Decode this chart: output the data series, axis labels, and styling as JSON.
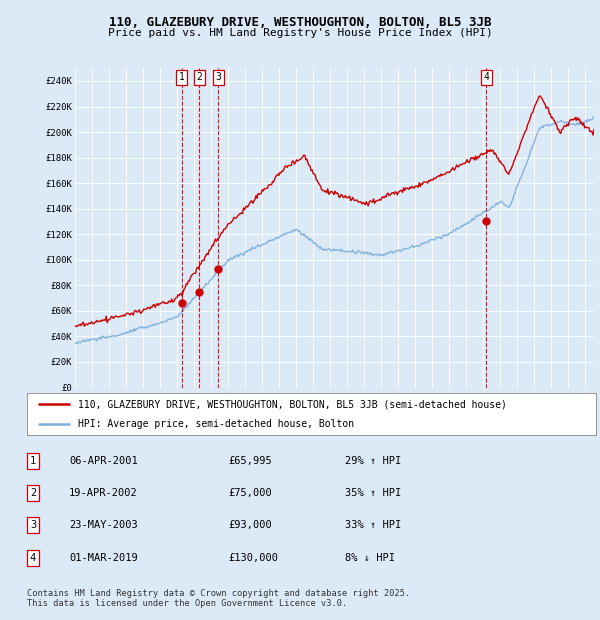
{
  "title": "110, GLAZEBURY DRIVE, WESTHOUGHTON, BOLTON, BL5 3JB",
  "subtitle": "Price paid vs. HM Land Registry's House Price Index (HPI)",
  "ylim": [
    0,
    250000
  ],
  "xlim_start": 1995.0,
  "xlim_end": 2025.5,
  "background_color": "#dce9f7",
  "plot_bg_color": "#dce9f7",
  "grid_color": "#ffffff",
  "sale_points": [
    {
      "label": "1",
      "date_x": 2001.27,
      "price": 65995
    },
    {
      "label": "2",
      "date_x": 2002.3,
      "price": 75000
    },
    {
      "label": "3",
      "date_x": 2003.42,
      "price": 93000
    },
    {
      "label": "4",
      "date_x": 2019.17,
      "price": 130000
    }
  ],
  "legend_property": "110, GLAZEBURY DRIVE, WESTHOUGHTON, BOLTON, BL5 3JB (semi-detached house)",
  "legend_hpi": "HPI: Average price, semi-detached house, Bolton",
  "table_rows": [
    [
      "1",
      "06-APR-2001",
      "£65,995",
      "29% ↑ HPI"
    ],
    [
      "2",
      "19-APR-2002",
      "£75,000",
      "35% ↑ HPI"
    ],
    [
      "3",
      "23-MAY-2003",
      "£93,000",
      "33% ↑ HPI"
    ],
    [
      "4",
      "01-MAR-2019",
      "£130,000",
      "8% ↓ HPI"
    ]
  ],
  "footnote": "Contains HM Land Registry data © Crown copyright and database right 2025.\nThis data is licensed under the Open Government Licence v3.0.",
  "red_color": "#cc0000",
  "blue_color": "#7aaddb",
  "dashed_color": "#cc0000",
  "y_ticks": [
    0,
    20000,
    40000,
    60000,
    80000,
    100000,
    120000,
    140000,
    160000,
    180000,
    200000,
    220000,
    240000
  ],
  "y_labels": [
    "£0",
    "£20K",
    "£40K",
    "£60K",
    "£80K",
    "£100K",
    "£120K",
    "£140K",
    "£160K",
    "£180K",
    "£200K",
    "£220K",
    "£240K"
  ]
}
